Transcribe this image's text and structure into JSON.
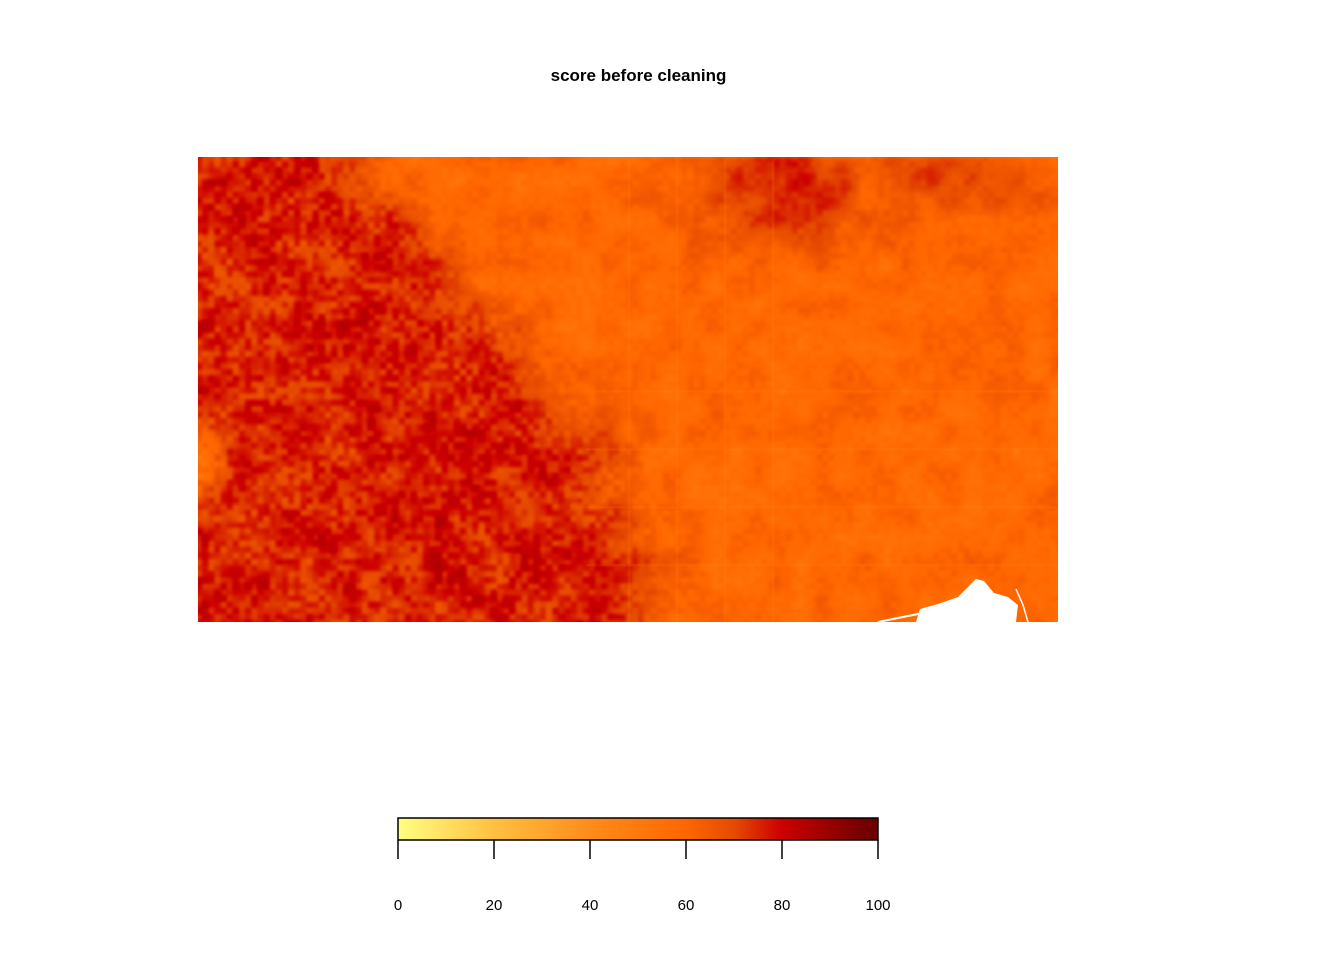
{
  "chart_data": {
    "type": "heatmap",
    "title": "score before cleaning",
    "xlabel": "",
    "ylabel": "",
    "color_scale": {
      "min": 0,
      "max": 100,
      "ticks": [
        0,
        20,
        40,
        60,
        80,
        100
      ],
      "tick_labels": [
        "0",
        "20",
        "40",
        "60",
        "80",
        "100"
      ],
      "stops": [
        {
          "value": 0,
          "color": "#ffff80"
        },
        {
          "value": 20,
          "color": "#ffc040"
        },
        {
          "value": 40,
          "color": "#ff8c1a"
        },
        {
          "value": 60,
          "color": "#ff6600"
        },
        {
          "value": 70,
          "color": "#e64a00"
        },
        {
          "value": 80,
          "color": "#cc0000"
        },
        {
          "value": 100,
          "color": "#660000"
        }
      ]
    },
    "regions": [
      {
        "area": "west",
        "typical_score": 75
      },
      {
        "area": "east",
        "typical_score": 60
      },
      {
        "area": "top-center",
        "typical_score": 80
      },
      {
        "area": "bottom-right",
        "typical_score": null
      }
    ],
    "grid": false,
    "legend_position": "bottom"
  }
}
